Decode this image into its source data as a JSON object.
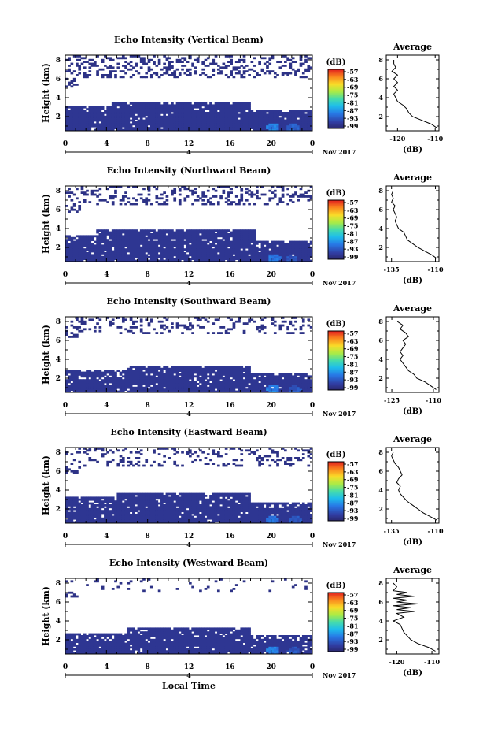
{
  "chart_data": [
    {
      "type": "heatmap",
      "title": "Echo Intensity (Vertical Beam)",
      "ylabel": "Height (km)",
      "xlabel": "",
      "x_ticks": [
        "0",
        "4",
        "8",
        "12",
        "16",
        "20",
        "0"
      ],
      "y_ticks": [
        "2",
        "4",
        "6",
        "8"
      ],
      "xlim": [
        0,
        24
      ],
      "ylim": [
        0.5,
        8.5
      ],
      "date_marker": "4",
      "date_label": "Nov 2017",
      "colorbar": {
        "unit": "(dB)",
        "ticks": [
          "-57",
          "-63",
          "-69",
          "-75",
          "-81",
          "-87",
          "-93",
          "-99"
        ],
        "range": [
          -99,
          -57
        ]
      },
      "layers": [
        {
          "x0": 0,
          "x1": 24,
          "y0": 0.5,
          "y1": 2.5,
          "value": -96,
          "density": 0.96
        },
        {
          "x0": 0,
          "x1": 4.5,
          "y0": 2.5,
          "y1": 3.1,
          "value": -96,
          "density": 0.88
        },
        {
          "x0": 4.5,
          "x1": 18,
          "y0": 2.5,
          "y1": 3.6,
          "value": -96,
          "density": 0.93
        },
        {
          "x0": 18,
          "x1": 24,
          "y0": 2.5,
          "y1": 2.8,
          "value": -96,
          "density": 0.85
        },
        {
          "x0": 0,
          "x1": 24,
          "y0": 6.2,
          "y1": 8.5,
          "value": -97,
          "density": 0.3
        },
        {
          "x0": 0,
          "x1": 1.5,
          "y0": 5.2,
          "y1": 7.6,
          "value": -97,
          "density": 0.6
        }
      ],
      "hotspots": [
        {
          "x": 20.2,
          "y": 0.9,
          "value": -88
        },
        {
          "x": 22.1,
          "y": 0.8,
          "value": -91
        }
      ],
      "profile": {
        "title": "Average",
        "xlabel": "(dB)",
        "x_ticks": [
          "-120",
          "-110"
        ],
        "xlim": [
          -123,
          -109
        ],
        "y_ticks": [
          "2",
          "4",
          "6",
          "8"
        ],
        "heights": [
          0.8,
          1.2,
          1.6,
          2.0,
          2.4,
          2.8,
          3.2,
          3.6,
          4.0,
          4.4,
          4.8,
          5.2,
          5.6,
          6.0,
          6.4,
          6.8,
          7.2,
          7.6,
          8.0
        ],
        "values": [
          -109.5,
          -111,
          -113.5,
          -116,
          -117,
          -117.5,
          -118.5,
          -120,
          -120.5,
          -121,
          -120,
          -121,
          -120,
          -121,
          -120,
          -121.5,
          -120.5,
          -121,
          -121
        ]
      }
    },
    {
      "type": "heatmap",
      "title": "Echo Intensity (Northward Beam)",
      "ylabel": "Height (km)",
      "xlabel": "",
      "x_ticks": [
        "0",
        "4",
        "8",
        "12",
        "16",
        "20",
        "0"
      ],
      "y_ticks": [
        "2",
        "4",
        "6",
        "8"
      ],
      "xlim": [
        0,
        24
      ],
      "ylim": [
        0.5,
        8.5
      ],
      "date_marker": "4",
      "date_label": "Nov 2017",
      "colorbar": {
        "unit": "(dB)",
        "ticks": [
          "-57",
          "-63",
          "-69",
          "-75",
          "-81",
          "-87",
          "-93",
          "-99"
        ],
        "range": [
          -99,
          -57
        ]
      },
      "layers": [
        {
          "x0": 0,
          "x1": 24,
          "y0": 0.5,
          "y1": 2.2,
          "value": -96,
          "density": 0.95
        },
        {
          "x0": 0,
          "x1": 3,
          "y0": 2.2,
          "y1": 3.3,
          "value": -96,
          "density": 0.8
        },
        {
          "x0": 3,
          "x1": 18.5,
          "y0": 2.2,
          "y1": 4.0,
          "value": -96,
          "density": 0.92
        },
        {
          "x0": 18.5,
          "x1": 24,
          "y0": 2.2,
          "y1": 2.7,
          "value": -96,
          "density": 0.8
        },
        {
          "x0": 0,
          "x1": 24,
          "y0": 6.5,
          "y1": 8.5,
          "value": -97,
          "density": 0.28
        },
        {
          "x0": 0,
          "x1": 1.8,
          "y0": 5.8,
          "y1": 8.2,
          "value": -97,
          "density": 0.55
        }
      ],
      "hotspots": [
        {
          "x": 20.3,
          "y": 0.9,
          "value": -89
        },
        {
          "x": 22.0,
          "y": 0.8,
          "value": -92
        }
      ],
      "profile": {
        "title": "Average",
        "xlabel": "(dB)",
        "x_ticks": [
          "-135",
          "-110"
        ],
        "xlim": [
          -138,
          -108
        ],
        "y_ticks": [
          "2",
          "4",
          "6",
          "8"
        ],
        "heights": [
          0.8,
          1.2,
          1.6,
          2.0,
          2.4,
          2.8,
          3.2,
          3.6,
          4.0,
          4.4,
          4.8,
          5.2,
          5.6,
          6.0,
          6.4,
          6.8,
          7.2,
          7.6,
          8.0
        ],
        "values": [
          -109,
          -112,
          -116,
          -120,
          -123,
          -126,
          -127,
          -128,
          -131,
          -132,
          -133,
          -132,
          -133,
          -134,
          -133,
          -135,
          -134,
          -135,
          -134
        ]
      }
    },
    {
      "type": "heatmap",
      "title": "Echo Intensity (Southward Beam)",
      "ylabel": "Height (km)",
      "xlabel": "",
      "x_ticks": [
        "0",
        "4",
        "8",
        "12",
        "16",
        "20",
        "0"
      ],
      "y_ticks": [
        "2",
        "4",
        "6",
        "8"
      ],
      "xlim": [
        0,
        24
      ],
      "ylim": [
        0.5,
        8.5
      ],
      "date_marker": "4",
      "date_label": "Nov 2017",
      "colorbar": {
        "unit": "(dB)",
        "ticks": [
          "-57",
          "-63",
          "-69",
          "-75",
          "-81",
          "-87",
          "-93",
          "-99"
        ],
        "range": [
          -99,
          -57
        ]
      },
      "layers": [
        {
          "x0": 0,
          "x1": 24,
          "y0": 0.5,
          "y1": 2.0,
          "value": -96,
          "density": 0.95
        },
        {
          "x0": 0,
          "x1": 6,
          "y0": 2.0,
          "y1": 2.9,
          "value": -96,
          "density": 0.8
        },
        {
          "x0": 6,
          "x1": 18,
          "y0": 2.0,
          "y1": 3.3,
          "value": -96,
          "density": 0.9
        },
        {
          "x0": 18,
          "x1": 24,
          "y0": 2.0,
          "y1": 2.5,
          "value": -96,
          "density": 0.78
        },
        {
          "x0": 0,
          "x1": 24,
          "y0": 6.8,
          "y1": 8.5,
          "value": -97,
          "density": 0.22
        },
        {
          "x0": 0,
          "x1": 1.4,
          "y0": 6.3,
          "y1": 8.3,
          "value": -97,
          "density": 0.55
        }
      ],
      "hotspots": [
        {
          "x": 20.2,
          "y": 0.9,
          "value": -88
        },
        {
          "x": 22.3,
          "y": 0.8,
          "value": -92
        }
      ],
      "profile": {
        "title": "Average",
        "xlabel": "(dB)",
        "x_ticks": [
          "-125",
          "-110"
        ],
        "xlim": [
          -127,
          -108
        ],
        "y_ticks": [
          "2",
          "4",
          "6",
          "8"
        ],
        "heights": [
          0.8,
          1.2,
          1.6,
          2.0,
          2.4,
          2.8,
          3.2,
          3.6,
          4.0,
          4.4,
          4.8,
          5.2,
          5.6,
          6.0,
          6.4,
          6.8,
          7.2,
          7.6,
          8.0
        ],
        "values": [
          -109,
          -111,
          -113,
          -116,
          -117,
          -119,
          -120,
          -121,
          -122,
          -121,
          -122,
          -121,
          -120,
          -121,
          -119,
          -120,
          -122,
          -121,
          -123
        ]
      }
    },
    {
      "type": "heatmap",
      "title": "Echo Intensity (Eastward Beam)",
      "ylabel": "Height (km)",
      "xlabel": "",
      "x_ticks": [
        "0",
        "4",
        "8",
        "12",
        "16",
        "20",
        "0"
      ],
      "y_ticks": [
        "2",
        "4",
        "6",
        "8"
      ],
      "xlim": [
        0,
        24
      ],
      "ylim": [
        0.5,
        8.5
      ],
      "date_marker": "4",
      "date_label": "Nov 2017",
      "colorbar": {
        "unit": "(dB)",
        "ticks": [
          "-57",
          "-63",
          "-69",
          "-75",
          "-81",
          "-87",
          "-93",
          "-99"
        ],
        "range": [
          -99,
          -57
        ]
      },
      "layers": [
        {
          "x0": 0,
          "x1": 24,
          "y0": 0.5,
          "y1": 2.2,
          "value": -96,
          "density": 0.96
        },
        {
          "x0": 0,
          "x1": 5,
          "y0": 2.2,
          "y1": 3.3,
          "value": -96,
          "density": 0.82
        },
        {
          "x0": 5,
          "x1": 18,
          "y0": 2.2,
          "y1": 3.8,
          "value": -96,
          "density": 0.92
        },
        {
          "x0": 18,
          "x1": 24,
          "y0": 2.2,
          "y1": 2.8,
          "value": -96,
          "density": 0.8
        },
        {
          "x0": 0,
          "x1": 24,
          "y0": 6.5,
          "y1": 8.5,
          "value": -97,
          "density": 0.22
        },
        {
          "x0": 0,
          "x1": 1.6,
          "y0": 5.8,
          "y1": 8.3,
          "value": -97,
          "density": 0.55
        }
      ],
      "hotspots": [
        {
          "x": 20.1,
          "y": 0.9,
          "value": -89
        },
        {
          "x": 22.4,
          "y": 0.8,
          "value": -92
        }
      ],
      "profile": {
        "title": "Average",
        "xlabel": "(dB)",
        "x_ticks": [
          "-135",
          "-110"
        ],
        "xlim": [
          -138,
          -108
        ],
        "y_ticks": [
          "2",
          "4",
          "6",
          "8"
        ],
        "heights": [
          0.8,
          1.2,
          1.6,
          2.0,
          2.4,
          2.8,
          3.2,
          3.6,
          4.0,
          4.4,
          4.8,
          5.2,
          5.6,
          6.0,
          6.4,
          6.8,
          7.2,
          7.6,
          8.0
        ],
        "values": [
          -109,
          -113,
          -117,
          -120,
          -123,
          -126,
          -128,
          -130,
          -131,
          -130,
          -132,
          -131,
          -129,
          -130,
          -131,
          -133,
          -134,
          -135,
          -134
        ]
      }
    },
    {
      "type": "heatmap",
      "title": "Echo Intensity (Westward Beam)",
      "ylabel": "Height (km)",
      "xlabel": "Local Time",
      "x_ticks": [
        "0",
        "4",
        "8",
        "12",
        "16",
        "20",
        "0"
      ],
      "y_ticks": [
        "2",
        "4",
        "6",
        "8"
      ],
      "xlim": [
        0,
        24
      ],
      "ylim": [
        0.5,
        8.5
      ],
      "date_marker": "4",
      "date_label": "Nov 2017",
      "colorbar": {
        "unit": "(dB)",
        "ticks": [
          "-57",
          "-63",
          "-69",
          "-75",
          "-81",
          "-87",
          "-93",
          "-99"
        ],
        "range": [
          -99,
          -57
        ]
      },
      "layers": [
        {
          "x0": 0,
          "x1": 24,
          "y0": 0.5,
          "y1": 2.0,
          "value": -96,
          "density": 0.96
        },
        {
          "x0": 0,
          "x1": 6,
          "y0": 2.0,
          "y1": 2.8,
          "value": -96,
          "density": 0.82
        },
        {
          "x0": 6,
          "x1": 18,
          "y0": 2.0,
          "y1": 3.3,
          "value": -96,
          "density": 0.9
        },
        {
          "x0": 18,
          "x1": 24,
          "y0": 2.0,
          "y1": 2.5,
          "value": -96,
          "density": 0.8
        },
        {
          "x0": 0,
          "x1": 24,
          "y0": 7.2,
          "y1": 8.5,
          "value": -97,
          "density": 0.06
        },
        {
          "x0": 0,
          "x1": 1.2,
          "y0": 6.5,
          "y1": 8.3,
          "value": -97,
          "density": 0.55
        }
      ],
      "hotspots": [
        {
          "x": 20.2,
          "y": 0.9,
          "value": -88
        },
        {
          "x": 22.2,
          "y": 0.8,
          "value": -92
        }
      ],
      "profile": {
        "title": "Average",
        "xlabel": "(dB)",
        "x_ticks": [
          "-120",
          "-110"
        ],
        "xlim": [
          -123,
          -108
        ],
        "y_ticks": [
          "2",
          "4",
          "6",
          "8"
        ],
        "heights": [
          0.8,
          1.2,
          1.6,
          2.0,
          2.4,
          2.8,
          3.2,
          3.6,
          4.0,
          4.4,
          4.8,
          5.0,
          5.2,
          5.4,
          5.6,
          5.8,
          6.0,
          6.2,
          6.4,
          6.6,
          6.8,
          7.0,
          7.2,
          7.6,
          8.0
        ],
        "values": [
          -109,
          -111,
          -114,
          -116,
          -117,
          -118,
          -118.5,
          -119,
          -121,
          -118,
          -120,
          -115,
          -120,
          -116,
          -121,
          -114,
          -120,
          -117,
          -121,
          -115,
          -120,
          -117,
          -121,
          -120,
          -121
        ]
      }
    }
  ]
}
